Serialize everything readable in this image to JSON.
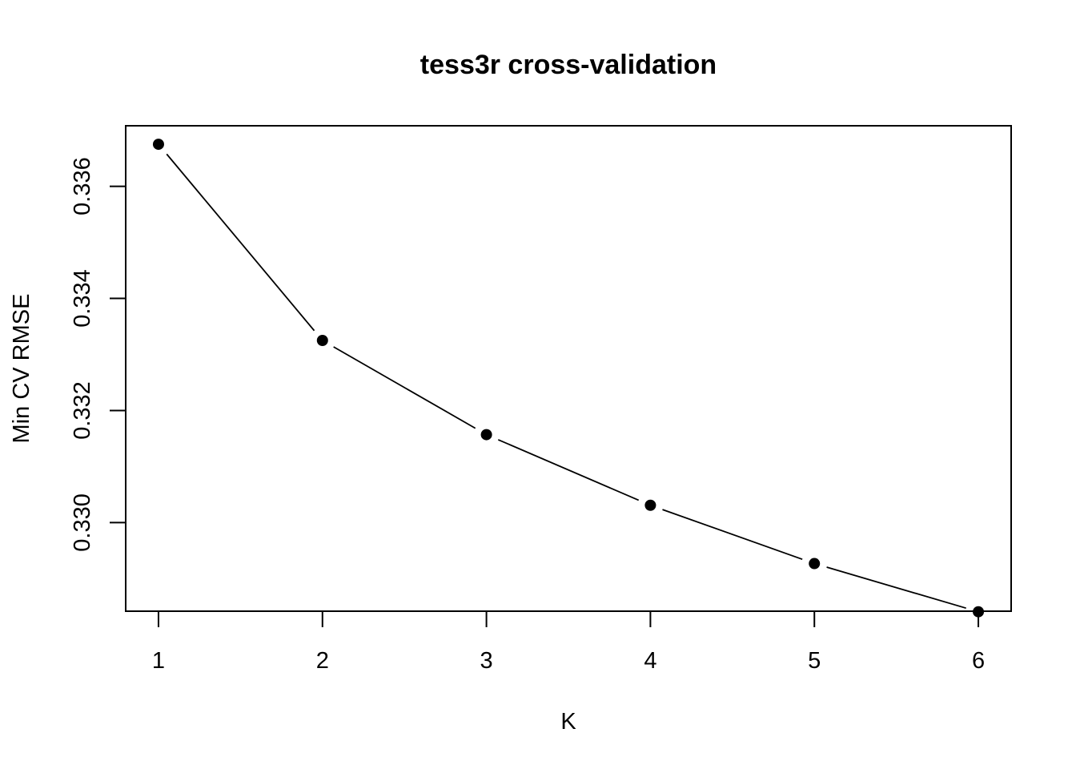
{
  "chart_data": {
    "type": "line",
    "title": "tess3r cross-validation",
    "xlabel": "K",
    "ylabel": "Min CV RMSE",
    "x": [
      1,
      2,
      3,
      4,
      5,
      6
    ],
    "x_tick_labels": [
      "1",
      "2",
      "3",
      "4",
      "5",
      "6"
    ],
    "y_ticks": [
      0.33,
      0.332,
      0.334,
      0.336
    ],
    "y_tick_labels": [
      "0.330",
      "0.332",
      "0.334",
      "0.336"
    ],
    "xlim": [
      0.8,
      6.2
    ],
    "ylim": [
      0.32842,
      0.33708
    ],
    "grid": false,
    "series": [
      {
        "values": [
          0.33675,
          0.33325,
          0.33157,
          0.33031,
          0.32927,
          0.32841
        ],
        "color": "#000000",
        "marker": "filled-circle",
        "line_style": "overplotted (type b)"
      }
    ]
  }
}
